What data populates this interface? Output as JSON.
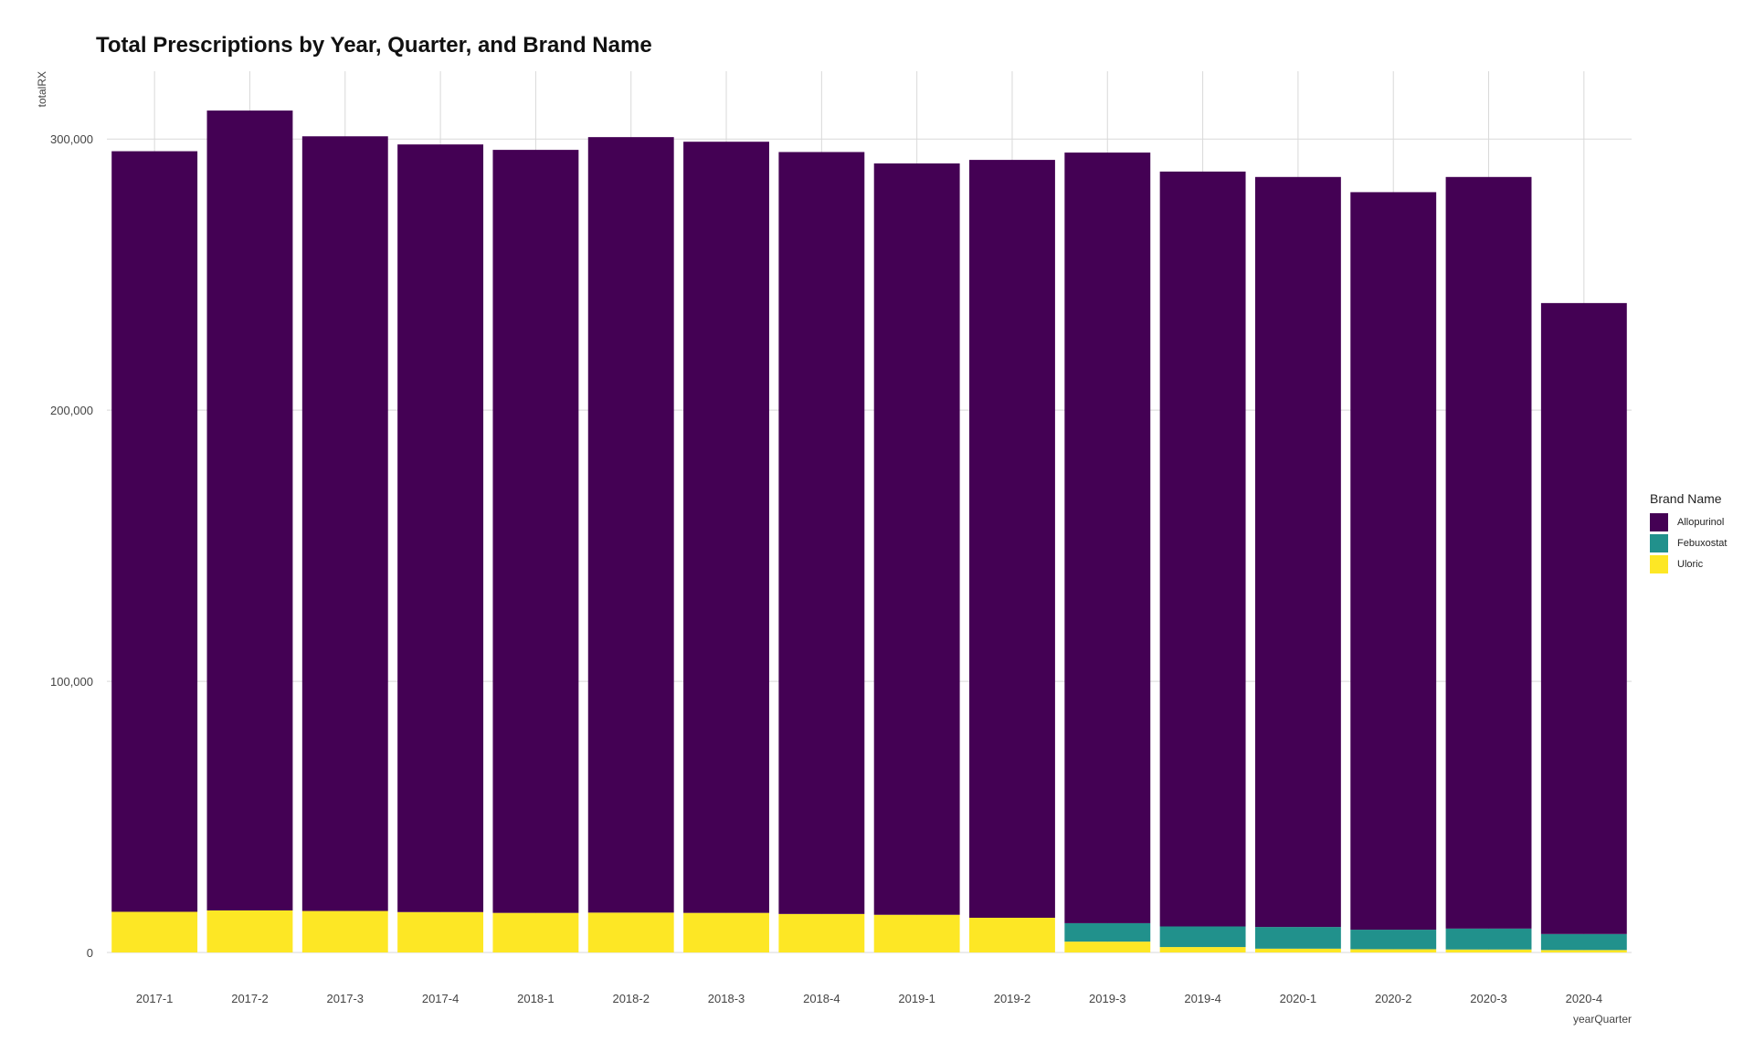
{
  "chart_data": {
    "type": "bar",
    "stacked": true,
    "title": "Total Prescriptions by Year, Quarter, and Brand Name",
    "xlabel": "yearQuarter",
    "ylabel": "totalRX",
    "ylim": [
      0,
      325000
    ],
    "yticks": [
      0,
      100000,
      200000,
      300000
    ],
    "ytick_labels": [
      "0",
      "100,000",
      "200,000",
      "300,000"
    ],
    "grid": true,
    "legend": {
      "title": "Brand Name",
      "position": "right"
    },
    "categories": [
      "2017-1",
      "2017-2",
      "2017-3",
      "2017-4",
      "2018-1",
      "2018-2",
      "2018-3",
      "2018-4",
      "2019-1",
      "2019-2",
      "2019-3",
      "2019-4",
      "2020-1",
      "2020-2",
      "2020-3",
      "2020-4"
    ],
    "series": [
      {
        "name": "Uloric",
        "color": "#FDE725",
        "values": [
          15000,
          15500,
          15300,
          14900,
          14600,
          14700,
          14600,
          14200,
          13900,
          12800,
          4000,
          2000,
          1400,
          1200,
          1100,
          900
        ]
      },
      {
        "name": "Febuxostat",
        "color": "#21918C",
        "values": [
          0,
          0,
          0,
          0,
          0,
          0,
          0,
          0,
          0,
          0,
          6800,
          7600,
          8000,
          7200,
          7700,
          5900
        ]
      },
      {
        "name": "Allopurinol",
        "color": "#440154",
        "values": [
          280500,
          295000,
          285700,
          283100,
          281400,
          286000,
          284400,
          281000,
          277100,
          279500,
          284200,
          278400,
          276600,
          272000,
          277200,
          232700
        ]
      }
    ]
  }
}
